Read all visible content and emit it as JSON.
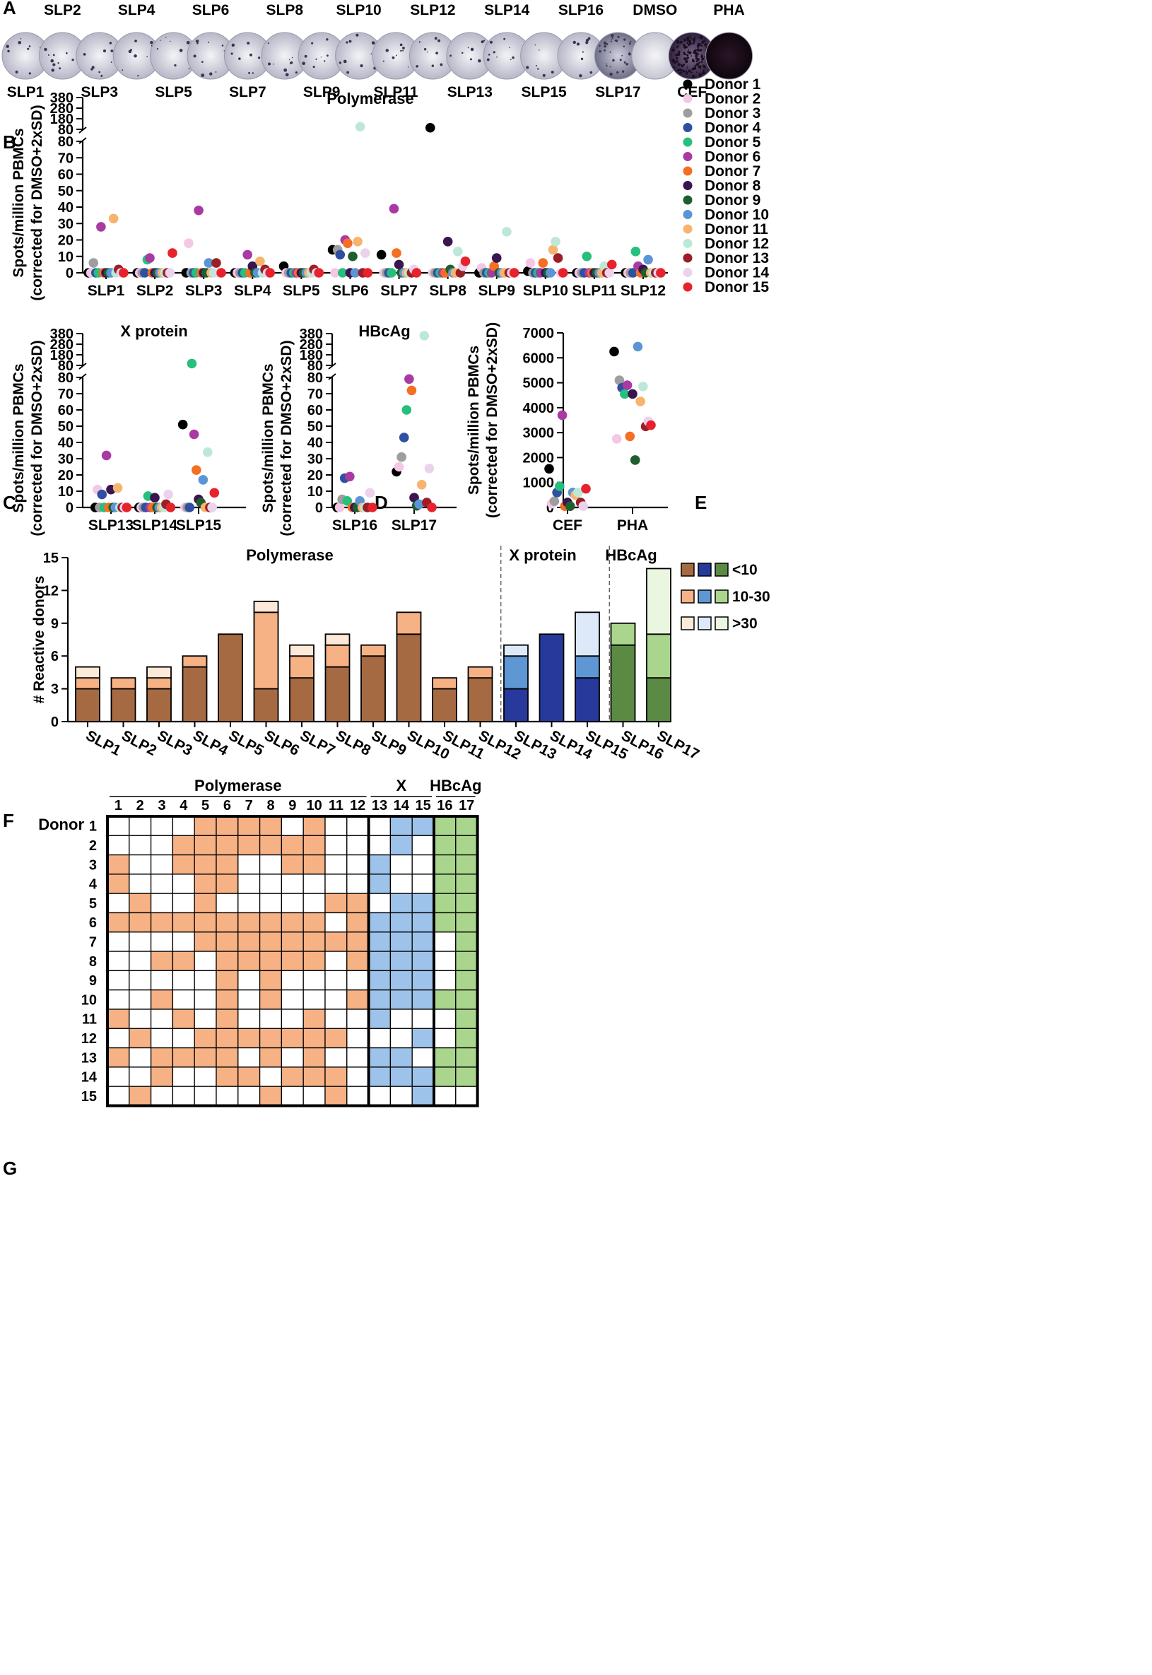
{
  "panel_labels": [
    "A",
    "B",
    "C",
    "D",
    "E",
    "F",
    "G"
  ],
  "colors": {
    "donors": [
      "#000000",
      "#f4c7e6",
      "#9e9e9e",
      "#2f4fa0",
      "#27bf7e",
      "#a93aa4",
      "#f46f23",
      "#3a1550",
      "#1f5e2e",
      "#5b95d6",
      "#f6b46f",
      "#bde8d8",
      "#9a1f27",
      "#ecd2ec",
      "#e7222b"
    ],
    "pol": [
      "#a66a43",
      "#f6b184",
      "#fde9d7"
    ],
    "x": [
      "#27399b",
      "#5e97d3",
      "#dde9f8"
    ],
    "hbc": [
      "#5b8a45",
      "#a9d58c",
      "#eaf6df"
    ],
    "grid_pol": "#f6b184",
    "grid_x": "#9ec3ea",
    "grid_hbc": "#a9d58c"
  },
  "panelA": {
    "top_labels": [
      "SLP2",
      "SLP4",
      "SLP6",
      "SLP8",
      "SLP10",
      "SLP12",
      "SLP14",
      "SLP16",
      "DMSO",
      "PHA"
    ],
    "bottom_labels": [
      "SLP1",
      "SLP3",
      "SLP5",
      "SLP7",
      "SLP9",
      "SLP11",
      "SLP13",
      "SLP15",
      "SLP17",
      "CEF"
    ],
    "wells": [
      {
        "name": "SLP1",
        "level": "low"
      },
      {
        "name": "SLP2",
        "level": "low"
      },
      {
        "name": "SLP3",
        "level": "low"
      },
      {
        "name": "SLP4",
        "level": "low"
      },
      {
        "name": "SLP5",
        "level": "low"
      },
      {
        "name": "SLP6",
        "level": "low"
      },
      {
        "name": "SLP7",
        "level": "low"
      },
      {
        "name": "SLP8",
        "level": "low"
      },
      {
        "name": "SLP9",
        "level": "low"
      },
      {
        "name": "SLP10",
        "level": "low"
      },
      {
        "name": "SLP11",
        "level": "low"
      },
      {
        "name": "SLP12",
        "level": "low"
      },
      {
        "name": "SLP13",
        "level": "low"
      },
      {
        "name": "SLP14",
        "level": "low"
      },
      {
        "name": "SLP15",
        "level": "low"
      },
      {
        "name": "SLP16",
        "level": "low"
      },
      {
        "name": "SLP17",
        "level": "medium"
      },
      {
        "name": "DMSO",
        "level": "blank"
      },
      {
        "name": "CEF",
        "level": "high"
      },
      {
        "name": "PHA",
        "level": "saturated"
      }
    ]
  },
  "legend_donors": [
    "Donor 1",
    "Donor 2",
    "Donor 3",
    "Donor 4",
    "Donor 5",
    "Donor 6",
    "Donor 7",
    "Donor 8",
    "Donor 9",
    "Donor 10",
    "Donor 11",
    "Donor 12",
    "Donor 13",
    "Donor 14",
    "Donor 15"
  ],
  "chart_data": [
    {
      "panel": "B",
      "type": "scatter",
      "title": "Polymerase",
      "ylabel": "Spots/million PBMCs",
      "ylabel2": "(corrected for DMSO+2xSD)",
      "ylim_lower": [
        0,
        80
      ],
      "yticks_lower": [
        0,
        10,
        20,
        30,
        40,
        50,
        60,
        70,
        80
      ],
      "ylim_upper": [
        80,
        380
      ],
      "yticks_upper": [
        80,
        180,
        280,
        380
      ],
      "categories": [
        "SLP1",
        "SLP2",
        "SLP3",
        "SLP4",
        "SLP5",
        "SLP6",
        "SLP7",
        "SLP8",
        "SLP9",
        "SLP10",
        "SLP11",
        "SLP12"
      ],
      "series_names": [
        "Donor 1",
        "Donor 2",
        "Donor 3",
        "Donor 4",
        "Donor 5",
        "Donor 6",
        "Donor 7",
        "Donor 8",
        "Donor 9",
        "Donor 10",
        "Donor 11",
        "Donor 12",
        "Donor 13",
        "Donor 14",
        "Donor 15"
      ],
      "values": [
        [
          0,
          0,
          0,
          0,
          4,
          14,
          11,
          95,
          0,
          1,
          0,
          0
        ],
        [
          0,
          0,
          18,
          0,
          0,
          0,
          0,
          0,
          3,
          6,
          0,
          0
        ],
        [
          6,
          0,
          0,
          0,
          0,
          14,
          0,
          0,
          0,
          0,
          0,
          0
        ],
        [
          0,
          0,
          0,
          0,
          0,
          11,
          0,
          0,
          0,
          0,
          0,
          0
        ],
        [
          0,
          8,
          0,
          0,
          0,
          0,
          0,
          0,
          0,
          0,
          10,
          13
        ],
        [
          28,
          9,
          38,
          11,
          0,
          20,
          39,
          0,
          0,
          0,
          0,
          4
        ],
        [
          0,
          0,
          0,
          0,
          0,
          18,
          12,
          0,
          4,
          6,
          0,
          0
        ],
        [
          0,
          0,
          0,
          4,
          0,
          0,
          5,
          19,
          9,
          0,
          0,
          2
        ],
        [
          0,
          0,
          0,
          0,
          0,
          10,
          0,
          2,
          0,
          0,
          0,
          0
        ],
        [
          0,
          0,
          6,
          0,
          0,
          0,
          0,
          0,
          0,
          0,
          0,
          8
        ],
        [
          33,
          0,
          0,
          7,
          0,
          19,
          0,
          0,
          0,
          14,
          0,
          0
        ],
        [
          0,
          0,
          0,
          0,
          0,
          105,
          0,
          13,
          25,
          19,
          4,
          0
        ],
        [
          2,
          0,
          6,
          2,
          2,
          0,
          0,
          0,
          0,
          9,
          0,
          0
        ],
        [
          0,
          0,
          0,
          0,
          0,
          12,
          2,
          4,
          0,
          0,
          0,
          0
        ],
        [
          0,
          12,
          0,
          0,
          0,
          0,
          0,
          7,
          0,
          0,
          5,
          0
        ]
      ]
    },
    {
      "panel": "C",
      "type": "scatter",
      "title": "X protein",
      "ylabel": "Spots/million PBMCs",
      "ylabel2": "(corrected for DMSO+2xSD)",
      "ylim_lower": [
        0,
        80
      ],
      "yticks_lower": [
        0,
        10,
        20,
        30,
        40,
        50,
        60,
        70,
        80
      ],
      "ylim_upper": [
        80,
        380
      ],
      "yticks_upper": [
        80,
        180,
        280,
        380
      ],
      "categories": [
        "SLP13",
        "SLP14",
        "SLP15"
      ],
      "series_names": [
        "Donor 1",
        "Donor 2",
        "Donor 3",
        "Donor 4",
        "Donor 5",
        "Donor 6",
        "Donor 7",
        "Donor 8",
        "Donor 9",
        "Donor 10",
        "Donor 11",
        "Donor 12",
        "Donor 13",
        "Donor 14",
        "Donor 15"
      ],
      "values": [
        [
          0,
          0,
          51
        ],
        [
          11,
          0,
          0
        ],
        [
          0,
          0,
          0
        ],
        [
          8,
          0,
          0
        ],
        [
          0,
          7,
          97
        ],
        [
          32,
          0,
          45
        ],
        [
          0,
          0,
          23
        ],
        [
          11,
          6,
          5
        ],
        [
          0,
          0,
          3
        ],
        [
          0,
          0,
          17
        ],
        [
          12,
          0,
          0
        ],
        [
          0,
          0,
          34
        ],
        [
          0,
          2,
          0
        ],
        [
          0,
          8,
          0
        ],
        [
          0,
          0,
          9
        ]
      ]
    },
    {
      "panel": "D",
      "type": "scatter",
      "title": "HBcAg",
      "ylabel": "Spots/million PBMCs",
      "ylabel2": "(corrected for DMSO+2xSD)",
      "ylim_lower": [
        0,
        80
      ],
      "yticks_lower": [
        0,
        10,
        20,
        30,
        40,
        50,
        60,
        70,
        80
      ],
      "ylim_upper": [
        80,
        380
      ],
      "yticks_upper": [
        80,
        180,
        280,
        380
      ],
      "categories": [
        "SLP16",
        "SLP17"
      ],
      "series_names": [
        "Donor 1",
        "Donor 2",
        "Donor 3",
        "Donor 4",
        "Donor 5",
        "Donor 6",
        "Donor 7",
        "Donor 8",
        "Donor 9",
        "Donor 10",
        "Donor 11",
        "Donor 12",
        "Donor 13",
        "Donor 14",
        "Donor 15"
      ],
      "values": [
        [
          0,
          22
        ],
        [
          0,
          25
        ],
        [
          5,
          31
        ],
        [
          18,
          43
        ],
        [
          4,
          60
        ],
        [
          19,
          79
        ],
        [
          0,
          72
        ],
        [
          0,
          6
        ],
        [
          0,
          1
        ],
        [
          4,
          2
        ],
        [
          0,
          14
        ],
        [
          0,
          360
        ],
        [
          0,
          3
        ],
        [
          9,
          24
        ],
        [
          0,
          0
        ]
      ]
    },
    {
      "panel": "E",
      "type": "scatter",
      "ylabel": "Spots/million PBMCs",
      "ylabel2": "(corrected for DMSO+2xSD)",
      "ylim": [
        0,
        7000
      ],
      "yticks": [
        0,
        1000,
        2000,
        3000,
        4000,
        5000,
        6000,
        7000
      ],
      "categories": [
        "CEF",
        "PHA"
      ],
      "series_names": [
        "Donor 1",
        "Donor 2",
        "Donor 3",
        "Donor 4",
        "Donor 5",
        "Donor 6",
        "Donor 7",
        "Donor 8",
        "Donor 9",
        "Donor 10",
        "Donor 11",
        "Donor 12",
        "Donor 13",
        "Donor 14",
        "Donor 15"
      ],
      "values": [
        [
          1550,
          6250
        ],
        [
          150,
          2750
        ],
        [
          250,
          5100
        ],
        [
          600,
          4800
        ],
        [
          850,
          4550
        ],
        [
          3700,
          4900
        ],
        [
          50,
          2850
        ],
        [
          200,
          4550
        ],
        [
          50,
          1900
        ],
        [
          600,
          6450
        ],
        [
          500,
          4250
        ],
        [
          600,
          4850
        ],
        [
          200,
          3250
        ],
        [
          50,
          3450
        ],
        [
          750,
          3300
        ]
      ]
    },
    {
      "panel": "F",
      "type": "bar",
      "stacked": true,
      "ylabel": "# Reactive donors",
      "ylim": [
        0,
        15
      ],
      "yticks": [
        0,
        3,
        6,
        9,
        12,
        15
      ],
      "categories": [
        "SLP1",
        "SLP2",
        "SLP3",
        "SLP4",
        "SLP5",
        "SLP6",
        "SLP7",
        "SLP8",
        "SLP9",
        "SLP10",
        "SLP11",
        "SLP12",
        "SLP13",
        "SLP14",
        "SLP15",
        "SLP16",
        "SLP17"
      ],
      "groups": [
        {
          "name": "Polymerase",
          "categories": [
            "SLP1",
            "SLP2",
            "SLP3",
            "SLP4",
            "SLP5",
            "SLP6",
            "SLP7",
            "SLP8",
            "SLP9",
            "SLP10",
            "SLP11",
            "SLP12"
          ]
        },
        {
          "name": "X protein",
          "categories": [
            "SLP13",
            "SLP14",
            "SLP15"
          ]
        },
        {
          "name": "HBcAg",
          "categories": [
            "SLP16",
            "SLP17"
          ]
        }
      ],
      "series": [
        {
          "name": "<10",
          "values": [
            3,
            3,
            3,
            5,
            8,
            3,
            4,
            5,
            6,
            8,
            3,
            4,
            3,
            8,
            4,
            7,
            4
          ]
        },
        {
          "name": "10-30",
          "values": [
            1,
            1,
            1,
            1,
            0,
            7,
            2,
            2,
            1,
            2,
            1,
            1,
            3,
            0,
            2,
            2,
            4
          ]
        },
        {
          "name": ">30",
          "values": [
            1,
            0,
            1,
            0,
            0,
            1,
            1,
            1,
            0,
            0,
            0,
            0,
            1,
            0,
            4,
            0,
            6
          ]
        }
      ]
    },
    {
      "panel": "G",
      "type": "heatmap",
      "row_header": "Donor",
      "rows": [
        "1",
        "2",
        "3",
        "4",
        "5",
        "6",
        "7",
        "8",
        "9",
        "10",
        "11",
        "12",
        "13",
        "14",
        "15"
      ],
      "columns": [
        "1",
        "2",
        "3",
        "4",
        "5",
        "6",
        "7",
        "8",
        "9",
        "10",
        "11",
        "12",
        "13",
        "14",
        "15",
        "16",
        "17"
      ],
      "groups": [
        {
          "name": "Polymerase",
          "columns": [
            "1",
            "2",
            "3",
            "4",
            "5",
            "6",
            "7",
            "8",
            "9",
            "10",
            "11",
            "12"
          ]
        },
        {
          "name": "X",
          "columns": [
            "13",
            "14",
            "15"
          ]
        },
        {
          "name": "HBcAg",
          "columns": [
            "16",
            "17"
          ]
        }
      ],
      "matrix": [
        [
          0,
          0,
          0,
          0,
          1,
          1,
          1,
          1,
          0,
          1,
          0,
          0,
          0,
          1,
          1,
          1,
          1
        ],
        [
          0,
          0,
          0,
          1,
          1,
          1,
          1,
          1,
          1,
          1,
          0,
          0,
          0,
          1,
          0,
          1,
          1
        ],
        [
          1,
          0,
          0,
          1,
          1,
          1,
          0,
          0,
          1,
          1,
          0,
          0,
          1,
          0,
          0,
          1,
          1
        ],
        [
          1,
          0,
          0,
          0,
          1,
          1,
          0,
          0,
          0,
          0,
          0,
          0,
          1,
          0,
          0,
          1,
          1
        ],
        [
          0,
          1,
          0,
          0,
          1,
          0,
          0,
          0,
          0,
          0,
          1,
          1,
          0,
          1,
          1,
          1,
          1
        ],
        [
          1,
          1,
          1,
          1,
          1,
          1,
          1,
          1,
          1,
          1,
          0,
          1,
          1,
          1,
          1,
          1,
          1
        ],
        [
          0,
          0,
          0,
          0,
          1,
          1,
          1,
          1,
          1,
          1,
          1,
          1,
          1,
          1,
          1,
          0,
          1
        ],
        [
          0,
          0,
          1,
          1,
          0,
          1,
          1,
          1,
          1,
          1,
          0,
          1,
          1,
          1,
          1,
          0,
          1
        ],
        [
          0,
          0,
          0,
          0,
          0,
          1,
          0,
          1,
          0,
          0,
          0,
          0,
          1,
          1,
          1,
          0,
          1
        ],
        [
          0,
          0,
          1,
          0,
          0,
          1,
          0,
          1,
          0,
          0,
          0,
          1,
          1,
          1,
          1,
          1,
          1
        ],
        [
          1,
          0,
          0,
          1,
          0,
          1,
          0,
          0,
          0,
          1,
          0,
          0,
          1,
          0,
          0,
          0,
          1
        ],
        [
          0,
          1,
          0,
          0,
          1,
          1,
          1,
          1,
          1,
          1,
          1,
          0,
          0,
          0,
          1,
          0,
          1
        ],
        [
          1,
          0,
          1,
          1,
          1,
          1,
          0,
          1,
          0,
          1,
          0,
          0,
          1,
          1,
          0,
          1,
          1
        ],
        [
          0,
          0,
          1,
          0,
          0,
          1,
          1,
          0,
          1,
          1,
          1,
          0,
          1,
          1,
          1,
          1,
          1
        ],
        [
          0,
          1,
          0,
          0,
          0,
          0,
          0,
          1,
          0,
          0,
          1,
          0,
          0,
          0,
          1,
          0,
          0
        ]
      ]
    }
  ]
}
